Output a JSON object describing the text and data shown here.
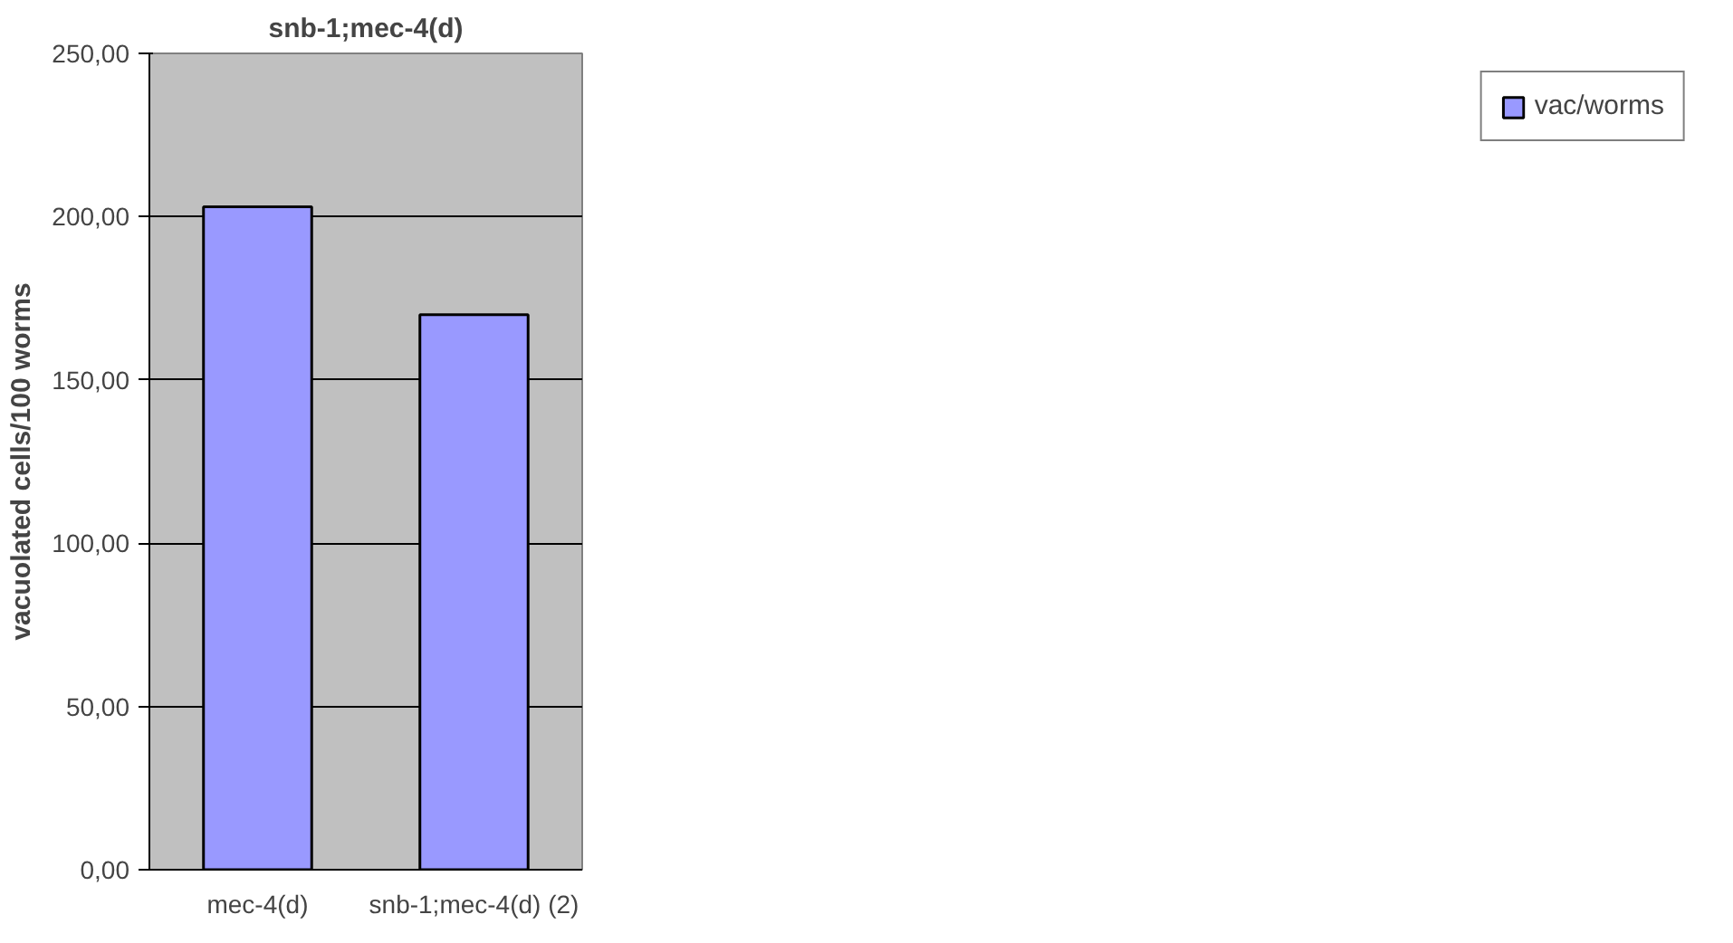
{
  "chart_data": {
    "type": "bar",
    "title": "snb-1;mec-4(d)",
    "ylabel": "vacuolated cells/100 worms",
    "categories": [
      "mec-4(d)",
      "snb-1;mec-4(d) (2)"
    ],
    "series": [
      {
        "name": "vac/worms",
        "color": "#9999ff",
        "values": [
          203,
          170
        ]
      }
    ],
    "ylim": [
      0,
      250
    ],
    "yticks": [
      {
        "value": 0,
        "label": "0,00"
      },
      {
        "value": 50,
        "label": "50,00"
      },
      {
        "value": 100,
        "label": "100,00"
      },
      {
        "value": 150,
        "label": "150,00"
      },
      {
        "value": 200,
        "label": "200,00"
      },
      {
        "value": 250,
        "label": "250,00"
      }
    ],
    "grid": "y",
    "legend": "right"
  }
}
